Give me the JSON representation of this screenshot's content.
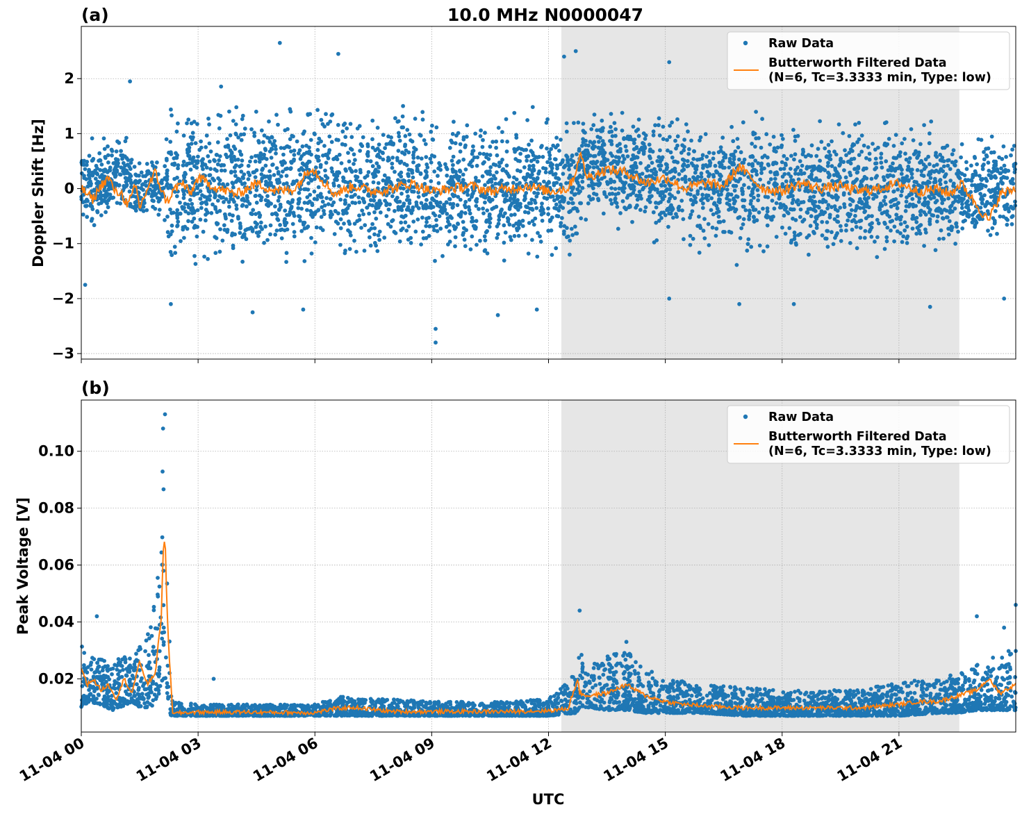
{
  "figure": {
    "title": "10.0 MHz N0000047",
    "xlabel": "UTC"
  },
  "colors": {
    "raw": "#1f77b4",
    "filtered": "#ff7f0e",
    "shade": "#e6e6e6",
    "grid": "#b0b0b0"
  },
  "legend": {
    "raw": "Raw Data",
    "filtered_line1": "Butterworth Filtered Data",
    "filtered_line2": "(N=6, Tc=3.3333 min, Type: low)"
  },
  "chart_data": [
    {
      "type": "scatter",
      "panel": "(a)",
      "title": "10.0 MHz N0000047",
      "xlabel": "",
      "ylabel": "Doppler Shift [Hz]",
      "x_unit": "hours UTC on 11-04",
      "xlim": [
        0,
        24
      ],
      "ylim": [
        -3.1,
        2.95
      ],
      "yticks": [
        -3,
        -2,
        -1,
        0,
        1,
        2
      ],
      "ytick_labels": [
        "−3",
        "−2",
        "−1",
        "0",
        "1",
        "2"
      ],
      "grid": true,
      "legend_position": "top-right",
      "shaded_x_range": [
        12.33,
        22.55
      ],
      "series": [
        {
          "name": "Raw Data",
          "style": "dots",
          "band_x": [
            0,
            0.5,
            1,
            1.5,
            1.9,
            2.1,
            2.2,
            2.3,
            3,
            4,
            5,
            6,
            7,
            8,
            9,
            10,
            11,
            12,
            12.7,
            12.8,
            13.5,
            14.5,
            15,
            16,
            17,
            18,
            19,
            20,
            21,
            22,
            22.5,
            23,
            24
          ],
          "band_low": [
            -0.7,
            -0.6,
            -0.5,
            -0.7,
            -0.6,
            -0.4,
            -1.2,
            -1.3,
            -1.4,
            -1.5,
            -1.4,
            -1.3,
            -1.3,
            -1.3,
            -1.4,
            -1.3,
            -1.3,
            -1.2,
            -1.1,
            -0.5,
            -0.5,
            -0.8,
            -1.0,
            -1.1,
            -1.2,
            -1.2,
            -1.2,
            -1.2,
            -1.1,
            -1.2,
            -1.1,
            -1.0,
            -0.9
          ],
          "band_high": [
            0.8,
            0.9,
            1.0,
            0.6,
            0.6,
            0.2,
            1.3,
            1.4,
            1.5,
            1.6,
            1.6,
            1.5,
            1.4,
            1.4,
            1.4,
            1.3,
            1.3,
            1.2,
            1.1,
            1.4,
            1.4,
            1.3,
            1.3,
            1.3,
            1.3,
            1.3,
            1.3,
            1.2,
            1.2,
            1.1,
            1.0,
            0.9,
            1.0
          ],
          "outliers": [
            {
              "x": 1.25,
              "y": 1.95
            },
            {
              "x": 0.1,
              "y": -1.75
            },
            {
              "x": 2.3,
              "y": -2.1
            },
            {
              "x": 4.4,
              "y": -2.25
            },
            {
              "x": 5.7,
              "y": -2.2
            },
            {
              "x": 9.1,
              "y": -2.8
            },
            {
              "x": 9.1,
              "y": -2.55
            },
            {
              "x": 10.7,
              "y": -2.3
            },
            {
              "x": 11.7,
              "y": -2.2
            },
            {
              "x": 5.1,
              "y": 2.65
            },
            {
              "x": 6.6,
              "y": 2.45
            },
            {
              "x": 12.7,
              "y": 2.5
            },
            {
              "x": 12.4,
              "y": 2.4
            },
            {
              "x": 15.1,
              "y": 2.3
            },
            {
              "x": 15.1,
              "y": -2.0
            },
            {
              "x": 16.9,
              "y": -2.1
            },
            {
              "x": 18.3,
              "y": -2.1
            },
            {
              "x": 21.8,
              "y": -2.15
            },
            {
              "x": 23.7,
              "y": -2.0
            }
          ]
        },
        {
          "name": "Butterworth Filtered Data",
          "style": "line",
          "x": [
            0,
            0.3,
            0.5,
            0.7,
            0.9,
            1.0,
            1.2,
            1.4,
            1.5,
            1.7,
            1.9,
            2.1,
            2.2,
            2.4,
            2.6,
            2.8,
            3.0,
            3.5,
            4.0,
            4.5,
            5.0,
            5.5,
            5.9,
            6.5,
            7.0,
            7.5,
            8.0,
            8.5,
            9.0,
            9.5,
            10.0,
            10.5,
            11.0,
            11.5,
            12.0,
            12.5,
            12.7,
            12.8,
            13.0,
            13.5,
            14.0,
            14.5,
            15.0,
            15.5,
            16.0,
            16.5,
            16.9,
            17.5,
            18.0,
            18.5,
            19.0,
            19.5,
            20.0,
            20.5,
            21.0,
            21.5,
            22.0,
            22.3,
            22.6,
            23.0,
            23.3,
            23.6,
            24.0
          ],
          "y": [
            0.0,
            -0.2,
            0.05,
            0.2,
            -0.1,
            -0.05,
            -0.3,
            0.05,
            -0.35,
            0.0,
            0.3,
            -0.1,
            -0.25,
            0.0,
            0.1,
            -0.1,
            0.2,
            0.0,
            -0.1,
            0.1,
            -0.05,
            0.0,
            0.4,
            -0.1,
            0.05,
            -0.05,
            0.0,
            0.1,
            -0.05,
            0.0,
            0.05,
            -0.05,
            0.0,
            0.05,
            -0.05,
            0.0,
            0.3,
            0.65,
            0.2,
            0.35,
            0.3,
            0.1,
            0.2,
            0.0,
            0.1,
            0.05,
            0.4,
            0.0,
            -0.05,
            0.1,
            0.0,
            0.05,
            -0.05,
            0.0,
            0.1,
            -0.05,
            0.0,
            -0.1,
            0.1,
            -0.3,
            -0.6,
            -0.1,
            0.0
          ]
        }
      ]
    },
    {
      "type": "scatter",
      "panel": "(b)",
      "title": "",
      "xlabel": "UTC",
      "ylabel": "Peak Voltage [V]",
      "x_unit": "hours UTC on 11-04",
      "xlim": [
        0,
        24
      ],
      "ylim": [
        0.0013,
        0.118
      ],
      "yticks": [
        0.02,
        0.04,
        0.06,
        0.08,
        0.1
      ],
      "ytick_labels": [
        "0.02",
        "0.04",
        "0.06",
        "0.08",
        "0.10"
      ],
      "xticks": [
        0,
        3,
        6,
        9,
        12,
        15,
        18,
        21
      ],
      "xtick_labels": [
        "11-04 00",
        "11-04 03",
        "11-04 06",
        "11-04 09",
        "11-04 12",
        "11-04 15",
        "11-04 18",
        "11-04 21"
      ],
      "grid": true,
      "legend_position": "top-right",
      "shaded_x_range": [
        12.33,
        22.55
      ],
      "series": [
        {
          "name": "Raw Data",
          "style": "dots",
          "band_x": [
            0,
            0.2,
            0.5,
            0.8,
            1.0,
            1.3,
            1.5,
            1.8,
            2.0,
            2.1,
            2.2,
            2.3,
            2.4,
            3.0,
            4.0,
            5.0,
            6.0,
            6.7,
            7.0,
            8.0,
            9.0,
            10.0,
            11.0,
            12.0,
            12.7,
            12.8,
            13.0,
            13.5,
            14.0,
            14.5,
            15.0,
            16.0,
            17.0,
            18.0,
            19.0,
            20.0,
            21.0,
            22.0,
            22.5,
            23.0,
            23.5,
            24.0
          ],
          "band_low": [
            0.01,
            0.012,
            0.011,
            0.009,
            0.01,
            0.012,
            0.01,
            0.01,
            0.015,
            0.02,
            0.015,
            0.007,
            0.007,
            0.007,
            0.007,
            0.007,
            0.007,
            0.007,
            0.007,
            0.007,
            0.007,
            0.007,
            0.007,
            0.007,
            0.008,
            0.01,
            0.01,
            0.009,
            0.009,
            0.008,
            0.008,
            0.008,
            0.007,
            0.007,
            0.007,
            0.007,
            0.007,
            0.008,
            0.008,
            0.009,
            0.009,
            0.009
          ],
          "band_high": [
            0.032,
            0.028,
            0.027,
            0.025,
            0.028,
            0.027,
            0.032,
            0.04,
            0.06,
            0.1,
            0.075,
            0.015,
            0.012,
            0.011,
            0.011,
            0.011,
            0.011,
            0.014,
            0.013,
            0.013,
            0.012,
            0.012,
            0.012,
            0.013,
            0.022,
            0.03,
            0.025,
            0.028,
            0.03,
            0.024,
            0.02,
            0.018,
            0.017,
            0.016,
            0.016,
            0.016,
            0.019,
            0.02,
            0.022,
            0.025,
            0.028,
            0.035
          ],
          "outliers": [
            {
              "x": 2.15,
              "y": 0.113
            },
            {
              "x": 2.1,
              "y": 0.108
            },
            {
              "x": 0.4,
              "y": 0.042
            },
            {
              "x": 3.4,
              "y": 0.02
            },
            {
              "x": 12.8,
              "y": 0.044
            },
            {
              "x": 14.0,
              "y": 0.033
            },
            {
              "x": 23.0,
              "y": 0.042
            },
            {
              "x": 24.0,
              "y": 0.046
            },
            {
              "x": 23.7,
              "y": 0.038
            }
          ]
        },
        {
          "name": "Butterworth Filtered Data",
          "style": "line",
          "x": [
            0,
            0.15,
            0.3,
            0.5,
            0.7,
            0.9,
            1.1,
            1.3,
            1.5,
            1.7,
            1.9,
            2.0,
            2.05,
            2.1,
            2.15,
            2.2,
            2.25,
            2.3,
            2.35,
            2.45,
            3.0,
            4.0,
            5.0,
            6.0,
            6.5,
            7.0,
            7.5,
            8.0,
            9.0,
            10.0,
            11.0,
            12.0,
            12.5,
            12.75,
            12.8,
            13.0,
            13.5,
            14.0,
            14.5,
            15.0,
            15.5,
            16.0,
            17.0,
            18.0,
            19.0,
            20.0,
            21.0,
            21.5,
            22.0,
            22.5,
            23.0,
            23.3,
            23.6,
            24.0
          ],
          "y": [
            0.024,
            0.018,
            0.02,
            0.016,
            0.018,
            0.013,
            0.02,
            0.015,
            0.026,
            0.018,
            0.022,
            0.035,
            0.04,
            0.065,
            0.07,
            0.045,
            0.03,
            0.02,
            0.007,
            0.008,
            0.0083,
            0.0083,
            0.0082,
            0.0081,
            0.0095,
            0.01,
            0.0092,
            0.0085,
            0.0085,
            0.0085,
            0.0085,
            0.0088,
            0.0095,
            0.02,
            0.015,
            0.014,
            0.015,
            0.018,
            0.014,
            0.012,
            0.011,
            0.0105,
            0.0098,
            0.0098,
            0.0098,
            0.0098,
            0.011,
            0.012,
            0.012,
            0.014,
            0.016,
            0.02,
            0.015,
            0.018
          ]
        }
      ]
    }
  ]
}
